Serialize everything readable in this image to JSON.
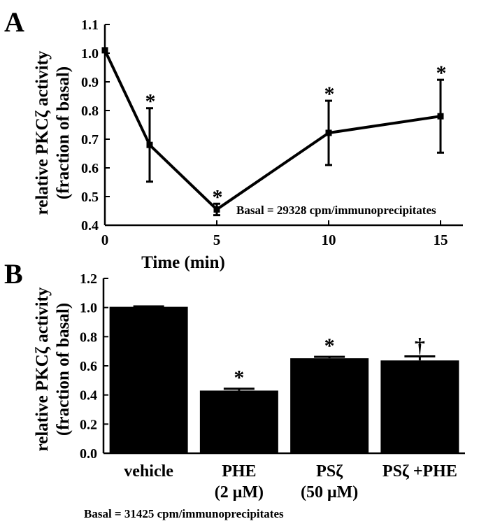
{
  "chart_data": [
    {
      "panel_label": "A",
      "type": "line",
      "title": "",
      "xlabel": "Time (min)",
      "ylabel_line1": "relative PKCζ activity",
      "ylabel_line2": "(fraction of basal)",
      "xlim": [
        0,
        16
      ],
      "ylim": [
        0.4,
        1.1
      ],
      "x_ticks": [
        0,
        5,
        10,
        15
      ],
      "y_ticks": [
        0.4,
        0.5,
        0.6,
        0.7,
        0.8,
        0.9,
        1.0,
        1.1
      ],
      "y_tick_labels": [
        "0.4",
        "0.5",
        "0.6",
        "0.7",
        "0.8",
        "0.9",
        "1.0",
        "1.1"
      ],
      "x": [
        0,
        2,
        5,
        10,
        15
      ],
      "y": [
        1.01,
        0.68,
        0.455,
        0.722,
        0.78
      ],
      "error": [
        0.0,
        0.128,
        0.02,
        0.112,
        0.127
      ],
      "annotations": [
        "",
        "*",
        "*",
        "*",
        "*"
      ],
      "note": "Basal = 29328 cpm/immunoprecipitates",
      "grid": false,
      "color": "#000000"
    },
    {
      "panel_label": "B",
      "type": "bar",
      "title": "",
      "xlabel": "",
      "ylabel_line1": "relative PKCζ activity",
      "ylabel_line2": "(fraction of basal)",
      "ylim": [
        0,
        1.2
      ],
      "y_ticks": [
        0,
        0.2,
        0.4,
        0.6,
        0.8,
        1.0,
        1.2
      ],
      "y_tick_labels": [
        "0.0",
        "0.2",
        "0.4",
        "0.6",
        "0.8",
        "1.0",
        "1.2"
      ],
      "categories": [
        {
          "line1": "vehicle",
          "line2": ""
        },
        {
          "line1": "PHE",
          "line2": "(2 μM)"
        },
        {
          "line1": "PSζ",
          "line2": "(50 μM)"
        },
        {
          "line1": "PSζ +PHE",
          "line2": ""
        }
      ],
      "values": [
        1.005,
        0.43,
        0.652,
        0.637
      ],
      "error": [
        0.003,
        0.013,
        0.01,
        0.028
      ],
      "annotations": [
        "",
        "*",
        "*",
        "†"
      ],
      "note": "Basal = 31425 cpm/immunoprecipitates",
      "grid": false,
      "color": "#000000"
    }
  ]
}
